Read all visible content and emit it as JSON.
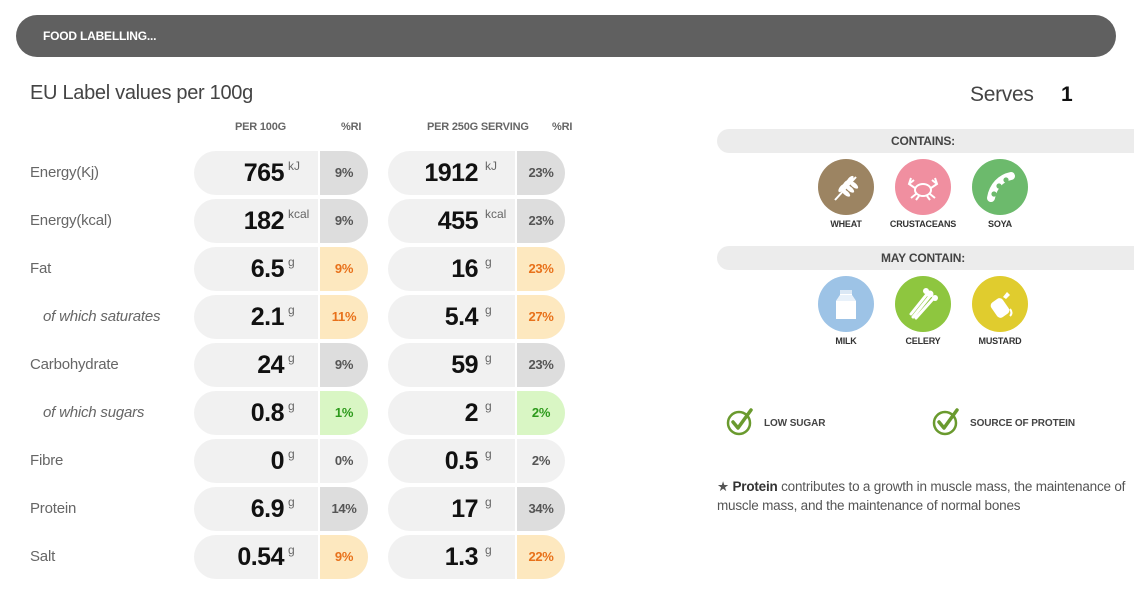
{
  "banner": {
    "title": "FOOD LABELLING..."
  },
  "eu": {
    "title": "EU Label values per 100g",
    "headers": {
      "per100": "PER 100G",
      "ri1": "%RI",
      "perServing": "PER 250G SERVING",
      "ri2": "%RI"
    }
  },
  "rows": [
    {
      "label": "Energy(Kj)",
      "sub": false,
      "v100": "765",
      "u100": "kJ",
      "ri100": "9%",
      "c100": "grey",
      "vServ": "1912",
      "uServ": "kJ",
      "riServ": "23%",
      "cServ": "grey"
    },
    {
      "label": "Energy(kcal)",
      "sub": false,
      "v100": "182",
      "u100": "kcal",
      "ri100": "9%",
      "c100": "grey",
      "vServ": "455",
      "uServ": "kcal",
      "riServ": "23%",
      "cServ": "grey"
    },
    {
      "label": "Fat",
      "sub": false,
      "v100": "6.5",
      "u100": "g",
      "ri100": "9%",
      "c100": "amber",
      "vServ": "16",
      "uServ": "g",
      "riServ": "23%",
      "cServ": "amber"
    },
    {
      "label": "of which saturates",
      "sub": true,
      "v100": "2.1",
      "u100": "g",
      "ri100": "11%",
      "c100": "amber",
      "vServ": "5.4",
      "uServ": "g",
      "riServ": "27%",
      "cServ": "amber"
    },
    {
      "label": "Carbohydrate",
      "sub": false,
      "v100": "24",
      "u100": "g",
      "ri100": "9%",
      "c100": "grey",
      "vServ": "59",
      "uServ": "g",
      "riServ": "23%",
      "cServ": "grey"
    },
    {
      "label": "of which sugars",
      "sub": true,
      "v100": "0.8",
      "u100": "g",
      "ri100": "1%",
      "c100": "green",
      "vServ": "2",
      "uServ": "g",
      "riServ": "2%",
      "cServ": "green"
    },
    {
      "label": "Fibre",
      "sub": false,
      "v100": "0",
      "u100": "g",
      "ri100": "0%",
      "c100": "white",
      "vServ": "0.5",
      "uServ": "g",
      "riServ": "2%",
      "cServ": "white"
    },
    {
      "label": "Protein",
      "sub": false,
      "v100": "6.9",
      "u100": "g",
      "ri100": "14%",
      "c100": "grey",
      "vServ": "17",
      "uServ": "g",
      "riServ": "34%",
      "cServ": "grey"
    },
    {
      "label": "Salt",
      "sub": false,
      "v100": "0.54",
      "u100": "g",
      "ri100": "9%",
      "c100": "amber",
      "vServ": "1.3",
      "uServ": "g",
      "riServ": "22%",
      "cServ": "amber"
    }
  ],
  "serves": {
    "label": "Serves",
    "value": "1"
  },
  "contains": {
    "title": "CONTAINS:",
    "items": [
      {
        "name": "WHEAT",
        "icon": "wheat-icon",
        "color": "#9c8462"
      },
      {
        "name": "CRUSTACEANS",
        "icon": "crab-icon",
        "color": "#f08fa0"
      },
      {
        "name": "SOYA",
        "icon": "soya-icon",
        "color": "#6cba6c"
      }
    ]
  },
  "mayContain": {
    "title": "MAY CONTAIN:",
    "items": [
      {
        "name": "MILK",
        "icon": "milk-icon",
        "color": "#9dc3e6"
      },
      {
        "name": "CELERY",
        "icon": "celery-icon",
        "color": "#8ec63f"
      },
      {
        "name": "MUSTARD",
        "icon": "mustard-icon",
        "color": "#e0cc2e"
      }
    ]
  },
  "claims": [
    {
      "name": "LOW SUGAR",
      "icon": "check-circle-icon"
    },
    {
      "name": "SOURCE OF PROTEIN",
      "icon": "check-circle-icon"
    }
  ],
  "note": {
    "star": "★",
    "bold": "Protein",
    "text1": " contributes to a growth in muscle mass, the maintenance of",
    "text2": "muscle mass, and the maintenance of normal bones"
  }
}
